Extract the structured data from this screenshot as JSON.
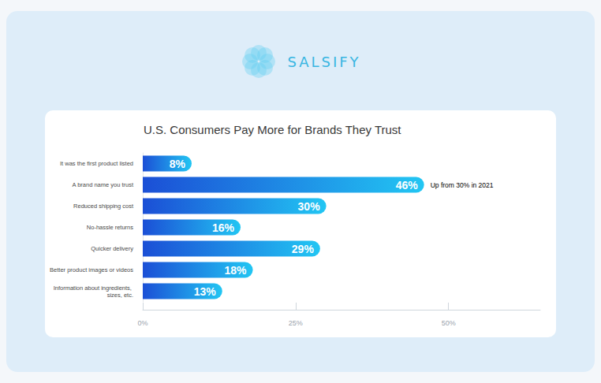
{
  "header": {
    "logo": "SALSIFY"
  },
  "chart_data": {
    "type": "bar",
    "orientation": "horizontal",
    "title": "U.S. Consumers Pay More for Brands They Trust",
    "categories": [
      "It was the first product listed",
      "A brand name you trust",
      "Reduced shipping cost",
      "No-hassle returns",
      "Quicker delivery",
      "Better product images or videos",
      "Information about ingredients, sizes, etc."
    ],
    "values": [
      8,
      46,
      30,
      16,
      29,
      18,
      13
    ],
    "value_labels": [
      "8%",
      "46%",
      "30%",
      "16%",
      "29%",
      "18%",
      "13%"
    ],
    "data_labels": true,
    "color": "#1b4fd6",
    "xlim": [
      0,
      65
    ],
    "xticks": [
      {
        "value": 0,
        "label": "0%"
      },
      {
        "value": 25,
        "label": "25%"
      },
      {
        "value": 50,
        "label": "50%"
      }
    ],
    "grid": false,
    "annotations": [
      {
        "text": "Up from 30% in 2021",
        "highlight": "30%",
        "category": "A brand name you trust"
      }
    ]
  }
}
